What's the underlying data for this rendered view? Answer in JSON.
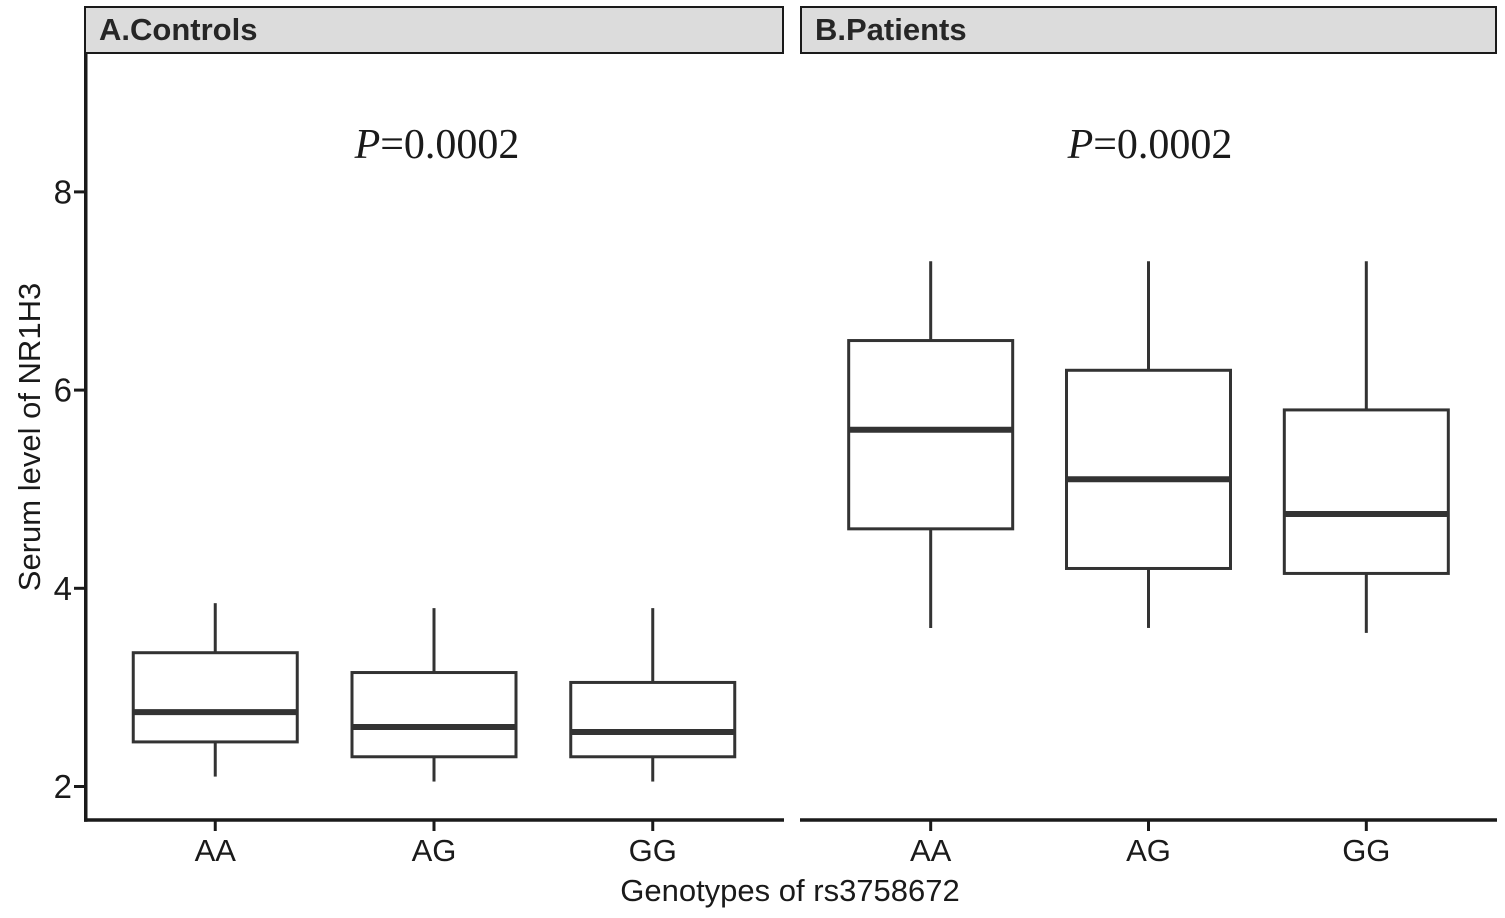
{
  "colors": {
    "background": "#ffffff",
    "strip_bg": "#dcdcdc",
    "strip_border": "#1a1a1a",
    "axis": "#1a1a1a",
    "box_stroke": "#333333",
    "box_fill": "#ffffff",
    "text": "#1a1a1a"
  },
  "chart_data": {
    "type": "boxplot",
    "title": "",
    "xlabel": "Genotypes of rs3758672",
    "ylabel": "Serum level of NR1H3",
    "yticks": [
      2,
      4,
      6,
      8
    ],
    "ylim": [
      1.65,
      9.4
    ],
    "grid": "off",
    "categories": [
      "AA",
      "AG",
      "GG"
    ],
    "panels": [
      {
        "label": "A.Controls",
        "annotation": {
          "italic": "P",
          "rest": "=0.0002"
        },
        "boxes": [
          {
            "category": "AA",
            "whisker_low": 2.1,
            "q1": 2.45,
            "median": 2.75,
            "q3": 3.35,
            "whisker_high": 3.85
          },
          {
            "category": "AG",
            "whisker_low": 2.05,
            "q1": 2.3,
            "median": 2.6,
            "q3": 3.15,
            "whisker_high": 3.8
          },
          {
            "category": "GG",
            "whisker_low": 2.05,
            "q1": 2.3,
            "median": 2.55,
            "q3": 3.05,
            "whisker_high": 3.8
          }
        ]
      },
      {
        "label": "B.Patients",
        "annotation": {
          "italic": "P",
          "rest": "=0.0002"
        },
        "boxes": [
          {
            "category": "AA",
            "whisker_low": 3.6,
            "q1": 4.6,
            "median": 5.6,
            "q3": 6.5,
            "whisker_high": 7.3
          },
          {
            "category": "AG",
            "whisker_low": 3.6,
            "q1": 4.2,
            "median": 5.1,
            "q3": 6.2,
            "whisker_high": 7.3
          },
          {
            "category": "GG",
            "whisker_low": 3.55,
            "q1": 4.15,
            "median": 4.75,
            "q3": 5.8,
            "whisker_high": 7.3
          }
        ]
      }
    ]
  }
}
